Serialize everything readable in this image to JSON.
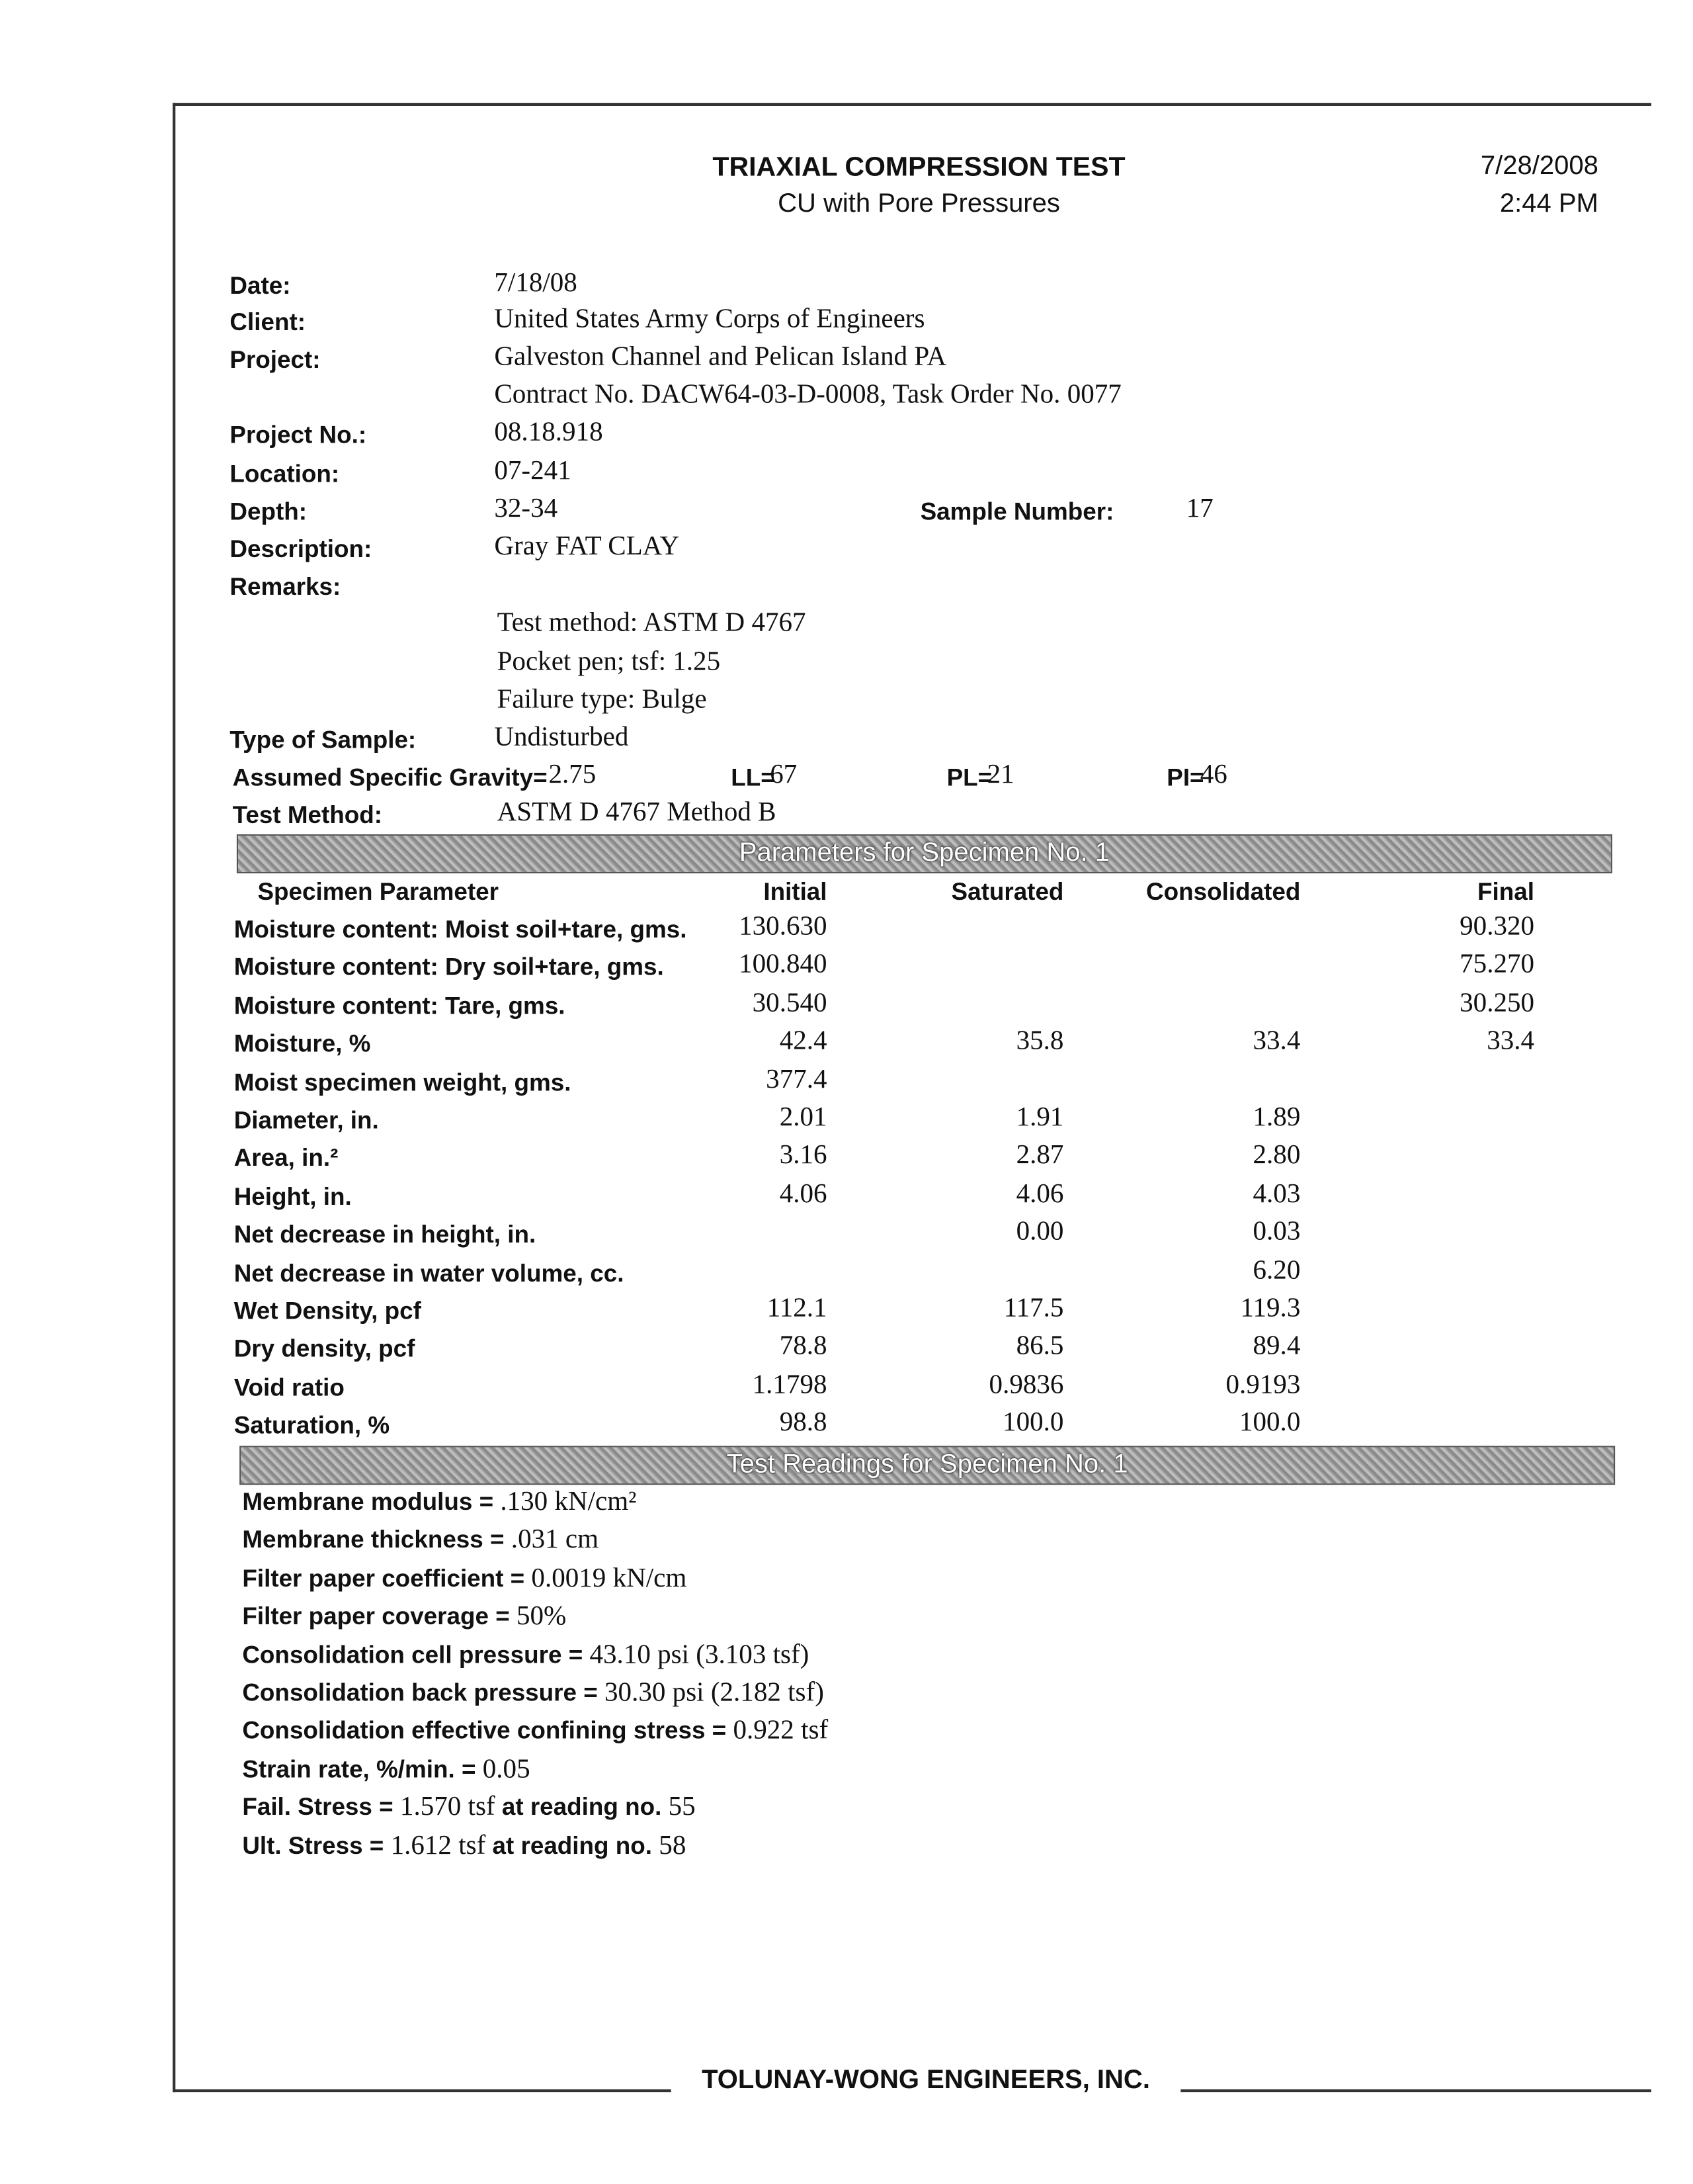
{
  "header": {
    "title": "TRIAXIAL COMPRESSION TEST",
    "subtitle": "CU with Pore Pressures",
    "print_date": "7/28/2008",
    "print_time": "2:44 PM"
  },
  "info": {
    "date_label": "Date:",
    "date": "7/18/08",
    "client_label": "Client:",
    "client": "United States Army Corps of Engineers",
    "project_label": "Project:",
    "project": "Galveston Channel and Pelican Island PA",
    "project_line2": "Contract No. DACW64-03-D-0008, Task Order No. 0077",
    "project_no_label": "Project No.:",
    "project_no": "08.18.918",
    "location_label": "Location:",
    "location": "07-241",
    "depth_label": "Depth:",
    "depth": "32-34",
    "sample_number_label": "Sample Number:",
    "sample_number": "17",
    "description_label": "Description:",
    "description": "Gray FAT CLAY",
    "remarks_label": "Remarks:",
    "remarks": [
      "Test method: ASTM D 4767",
      "Pocket pen; tsf: 1.25",
      "Failure type: Bulge"
    ],
    "type_label": "Type of Sample:",
    "type": "Undisturbed",
    "gravity_label": "Assumed Specific Gravity=",
    "gravity": "2.75",
    "ll_label": "LL=",
    "ll": "67",
    "pl_label": "PL=",
    "pl": "21",
    "pi_label": "PI=",
    "pi": "46",
    "test_method_label": "Test Method:",
    "test_method": "ASTM D 4767 Method B"
  },
  "params": {
    "band_title": "Parameters for Specimen No. 1",
    "headers": [
      "Specimen Parameter",
      "Initial",
      "Saturated",
      "Consolidated",
      "Final"
    ],
    "rows": [
      [
        "Moisture content: Moist soil+tare, gms.",
        "130.630",
        "",
        "",
        "90.320"
      ],
      [
        "Moisture content: Dry soil+tare, gms.",
        "100.840",
        "",
        "",
        "75.270"
      ],
      [
        "Moisture content: Tare, gms.",
        "30.540",
        "",
        "",
        "30.250"
      ],
      [
        "Moisture, %",
        "42.4",
        "35.8",
        "33.4",
        "33.4"
      ],
      [
        "Moist specimen weight, gms.",
        "377.4",
        "",
        "",
        ""
      ],
      [
        "Diameter, in.",
        "2.01",
        "1.91",
        "1.89",
        ""
      ],
      [
        "Area, in.²",
        "3.16",
        "2.87",
        "2.80",
        ""
      ],
      [
        "Height, in.",
        "4.06",
        "4.06",
        "4.03",
        ""
      ],
      [
        "Net decrease in height, in.",
        "",
        "0.00",
        "0.03",
        ""
      ],
      [
        "Net decrease in water volume, cc.",
        "",
        "",
        "6.20",
        ""
      ],
      [
        "Wet Density, pcf",
        "112.1",
        "117.5",
        "119.3",
        ""
      ],
      [
        "Dry density, pcf",
        "78.8",
        "86.5",
        "89.4",
        ""
      ],
      [
        "Void ratio",
        "1.1798",
        "0.9836",
        "0.9193",
        ""
      ],
      [
        "Saturation, %",
        "98.8",
        "100.0",
        "100.0",
        ""
      ]
    ]
  },
  "readings": {
    "band_title": "Test Readings for Specimen No. 1",
    "items": [
      {
        "label": "Membrane modulus = ",
        "value": ".130 kN/cm²"
      },
      {
        "label": "Membrane thickness = ",
        "value": ".031 cm"
      },
      {
        "label": "Filter paper coefficient = ",
        "value": "0.0019 kN/cm"
      },
      {
        "label": "Filter paper coverage = ",
        "value": "50%"
      },
      {
        "label": "Consolidation cell pressure = ",
        "value": "43.10 psi (3.103 tsf)"
      },
      {
        "label": "Consolidation back pressure = ",
        "value": "30.30 psi (2.182 tsf)"
      },
      {
        "label": "Consolidation effective confining stress = ",
        "value": "0.922 tsf"
      },
      {
        "label": "Strain rate, %/min. = ",
        "value": "0.05"
      },
      {
        "label": "Fail. Stress = ",
        "value": "1.570 tsf",
        "label2": " at reading no. ",
        "value2": "55"
      },
      {
        "label": "Ult. Stress = ",
        "value": "1.612 tsf",
        "label2": " at reading no. ",
        "value2": "58"
      }
    ]
  },
  "footer": {
    "company": "TOLUNAY-WONG ENGINEERS, INC."
  }
}
